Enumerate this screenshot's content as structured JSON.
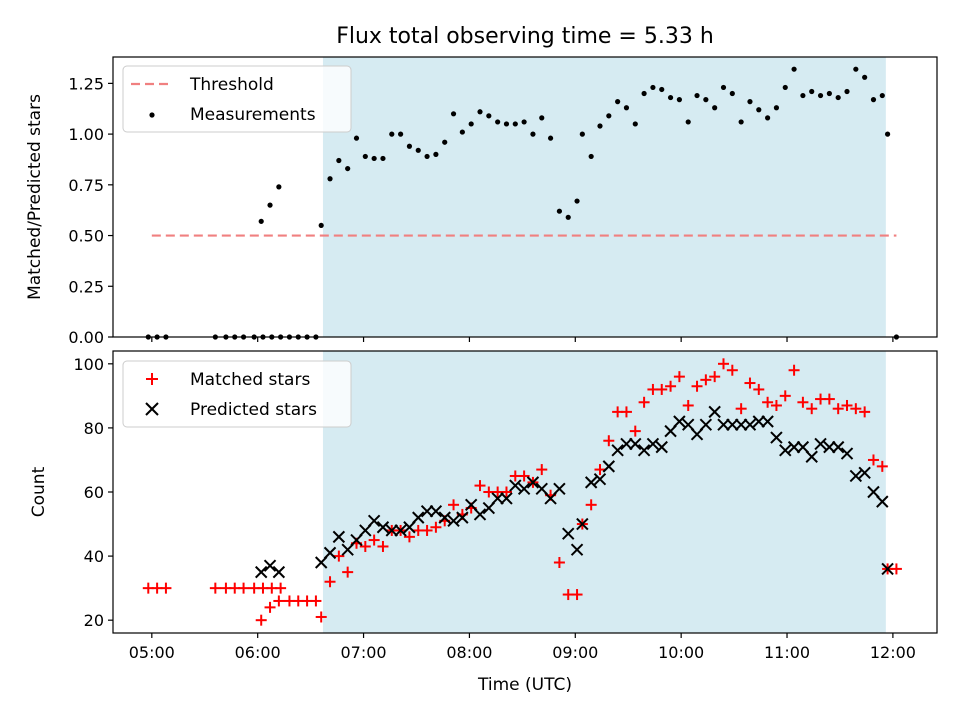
{
  "colors": {
    "threshold": "#f08080",
    "measurement": "#000000",
    "matched": "#ff0000",
    "predicted": "#000000",
    "observing_window": "#add8e6"
  },
  "chart_data": [
    {
      "type": "scatter",
      "title": "Flux total observing time = 5.33 h",
      "xlabel": "",
      "ylabel": "Matched/Predicted stars",
      "xlim": [
        "04:38",
        "12:25"
      ],
      "ylim": [
        0,
        1.38
      ],
      "x_ticks": [
        "05:00",
        "06:00",
        "07:00",
        "08:00",
        "09:00",
        "10:00",
        "11:00",
        "12:00"
      ],
      "y_ticks": [
        "0.00",
        "0.25",
        "0.50",
        "0.75",
        "1.00",
        "1.25"
      ],
      "shaded_span": {
        "from": "06:37",
        "to": "11:56"
      },
      "legend": {
        "placement": "upper left",
        "entries": [
          "Threshold",
          "Measurements"
        ]
      },
      "threshold": {
        "name": "Threshold",
        "value": 0.5,
        "from": "05:00",
        "to": "12:02"
      },
      "series": [
        {
          "name": "Measurements",
          "points": [
            [
              "04:58",
              0.0
            ],
            [
              "05:03",
              0.0
            ],
            [
              "05:08",
              0.0
            ],
            [
              "05:36",
              0.0
            ],
            [
              "05:42",
              0.0
            ],
            [
              "05:47",
              0.0
            ],
            [
              "05:52",
              0.0
            ],
            [
              "05:58",
              0.0
            ],
            [
              "06:03",
              0.0
            ],
            [
              "06:08",
              0.0
            ],
            [
              "06:13",
              0.0
            ],
            [
              "06:02",
              0.57
            ],
            [
              "06:07",
              0.65
            ],
            [
              "06:12",
              0.74
            ],
            [
              "06:18",
              0.0
            ],
            [
              "06:23",
              0.0
            ],
            [
              "06:28",
              0.0
            ],
            [
              "06:33",
              0.0
            ],
            [
              "06:36",
              0.55
            ],
            [
              "06:41",
              0.78
            ],
            [
              "06:46",
              0.87
            ],
            [
              "06:51",
              0.83
            ],
            [
              "06:56",
              0.98
            ],
            [
              "07:01",
              0.89
            ],
            [
              "07:06",
              0.88
            ],
            [
              "07:11",
              0.88
            ],
            [
              "07:16",
              1.0
            ],
            [
              "07:21",
              1.0
            ],
            [
              "07:26",
              0.94
            ],
            [
              "07:31",
              0.92
            ],
            [
              "07:36",
              0.89
            ],
            [
              "07:41",
              0.9
            ],
            [
              "07:46",
              0.96
            ],
            [
              "07:51",
              1.1
            ],
            [
              "07:56",
              1.01
            ],
            [
              "08:01",
              1.05
            ],
            [
              "08:06",
              1.11
            ],
            [
              "08:11",
              1.09
            ],
            [
              "08:16",
              1.06
            ],
            [
              "08:21",
              1.05
            ],
            [
              "08:26",
              1.05
            ],
            [
              "08:31",
              1.06
            ],
            [
              "08:36",
              1.0
            ],
            [
              "08:41",
              1.08
            ],
            [
              "08:46",
              0.98
            ],
            [
              "08:51",
              0.62
            ],
            [
              "08:56",
              0.59
            ],
            [
              "09:01",
              0.67
            ],
            [
              "09:04",
              1.0
            ],
            [
              "09:09",
              0.89
            ],
            [
              "09:14",
              1.04
            ],
            [
              "09:19",
              1.09
            ],
            [
              "09:24",
              1.16
            ],
            [
              "09:29",
              1.13
            ],
            [
              "09:34",
              1.05
            ],
            [
              "09:39",
              1.2
            ],
            [
              "09:44",
              1.23
            ],
            [
              "09:49",
              1.22
            ],
            [
              "09:54",
              1.18
            ],
            [
              "09:59",
              1.17
            ],
            [
              "10:04",
              1.06
            ],
            [
              "10:09",
              1.19
            ],
            [
              "10:14",
              1.17
            ],
            [
              "10:19",
              1.13
            ],
            [
              "10:24",
              1.23
            ],
            [
              "10:29",
              1.2
            ],
            [
              "10:34",
              1.06
            ],
            [
              "10:39",
              1.16
            ],
            [
              "10:44",
              1.12
            ],
            [
              "10:49",
              1.08
            ],
            [
              "10:54",
              1.13
            ],
            [
              "10:59",
              1.23
            ],
            [
              "11:04",
              1.32
            ],
            [
              "11:09",
              1.19
            ],
            [
              "11:14",
              1.21
            ],
            [
              "11:19",
              1.19
            ],
            [
              "11:24",
              1.2
            ],
            [
              "11:29",
              1.18
            ],
            [
              "11:34",
              1.21
            ],
            [
              "11:39",
              1.32
            ],
            [
              "11:44",
              1.28
            ],
            [
              "11:49",
              1.17
            ],
            [
              "11:54",
              1.19
            ],
            [
              "11:57",
              1.0
            ],
            [
              "12:02",
              0.0
            ]
          ]
        }
      ]
    },
    {
      "type": "scatter",
      "title": "",
      "xlabel": "Time (UTC)",
      "ylabel": "Count",
      "xlim": [
        "04:38",
        "12:25"
      ],
      "ylim": [
        16,
        104
      ],
      "x_ticks": [
        "05:00",
        "06:00",
        "07:00",
        "08:00",
        "09:00",
        "10:00",
        "11:00",
        "12:00"
      ],
      "y_ticks": [
        "20",
        "40",
        "60",
        "80",
        "100"
      ],
      "shaded_span": {
        "from": "06:37",
        "to": "11:56"
      },
      "legend": {
        "placement": "upper left",
        "entries": [
          "Matched stars",
          "Predicted stars"
        ]
      },
      "series": [
        {
          "name": "Matched stars",
          "marker": "plus",
          "points": [
            [
              "04:58",
              30
            ],
            [
              "05:03",
              30
            ],
            [
              "05:08",
              30
            ],
            [
              "05:36",
              30
            ],
            [
              "05:42",
              30
            ],
            [
              "05:47",
              30
            ],
            [
              "05:52",
              30
            ],
            [
              "05:58",
              30
            ],
            [
              "06:03",
              30
            ],
            [
              "06:08",
              30
            ],
            [
              "06:13",
              30
            ],
            [
              "06:02",
              20
            ],
            [
              "06:07",
              24
            ],
            [
              "06:12",
              26
            ],
            [
              "06:18",
              26
            ],
            [
              "06:23",
              26
            ],
            [
              "06:28",
              26
            ],
            [
              "06:33",
              26
            ],
            [
              "06:36",
              21
            ],
            [
              "06:41",
              32
            ],
            [
              "06:46",
              40
            ],
            [
              "06:51",
              35
            ],
            [
              "06:56",
              44
            ],
            [
              "07:01",
              43
            ],
            [
              "07:06",
              45
            ],
            [
              "07:11",
              43
            ],
            [
              "07:16",
              48
            ],
            [
              "07:21",
              48
            ],
            [
              "07:26",
              46
            ],
            [
              "07:31",
              48
            ],
            [
              "07:36",
              48
            ],
            [
              "07:41",
              49
            ],
            [
              "07:46",
              51
            ],
            [
              "07:51",
              56
            ],
            [
              "07:56",
              53
            ],
            [
              "08:01",
              55
            ],
            [
              "08:06",
              62
            ],
            [
              "08:11",
              60
            ],
            [
              "08:16",
              60
            ],
            [
              "08:21",
              60
            ],
            [
              "08:26",
              65
            ],
            [
              "08:31",
              65
            ],
            [
              "08:36",
              63
            ],
            [
              "08:41",
              67
            ],
            [
              "08:46",
              59
            ],
            [
              "08:51",
              38
            ],
            [
              "08:56",
              28
            ],
            [
              "09:01",
              28
            ],
            [
              "09:04",
              50
            ],
            [
              "09:09",
              56
            ],
            [
              "09:14",
              67
            ],
            [
              "09:19",
              76
            ],
            [
              "09:24",
              85
            ],
            [
              "09:29",
              85
            ],
            [
              "09:34",
              79
            ],
            [
              "09:39",
              88
            ],
            [
              "09:44",
              92
            ],
            [
              "09:49",
              92
            ],
            [
              "09:54",
              93
            ],
            [
              "09:59",
              96
            ],
            [
              "10:04",
              87
            ],
            [
              "10:09",
              93
            ],
            [
              "10:14",
              95
            ],
            [
              "10:19",
              96
            ],
            [
              "10:24",
              100
            ],
            [
              "10:29",
              98
            ],
            [
              "10:34",
              86
            ],
            [
              "10:39",
              94
            ],
            [
              "10:44",
              92
            ],
            [
              "10:49",
              88
            ],
            [
              "10:54",
              87
            ],
            [
              "10:59",
              90
            ],
            [
              "11:04",
              98
            ],
            [
              "11:09",
              88
            ],
            [
              "11:14",
              86
            ],
            [
              "11:19",
              89
            ],
            [
              "11:24",
              89
            ],
            [
              "11:29",
              86
            ],
            [
              "11:34",
              87
            ],
            [
              "11:39",
              86
            ],
            [
              "11:44",
              85
            ],
            [
              "11:49",
              70
            ],
            [
              "11:54",
              68
            ],
            [
              "11:57",
              36
            ],
            [
              "12:02",
              36
            ]
          ]
        },
        {
          "name": "Predicted stars",
          "marker": "x",
          "points": [
            [
              "06:02",
              35
            ],
            [
              "06:07",
              37
            ],
            [
              "06:12",
              35
            ],
            [
              "06:36",
              38
            ],
            [
              "06:41",
              41
            ],
            [
              "06:46",
              46
            ],
            [
              "06:51",
              42
            ],
            [
              "06:56",
              45
            ],
            [
              "07:01",
              48
            ],
            [
              "07:06",
              51
            ],
            [
              "07:11",
              49
            ],
            [
              "07:16",
              48
            ],
            [
              "07:21",
              48
            ],
            [
              "07:26",
              49
            ],
            [
              "07:31",
              52
            ],
            [
              "07:36",
              54
            ],
            [
              "07:41",
              54
            ],
            [
              "07:46",
              52
            ],
            [
              "07:51",
              51
            ],
            [
              "07:56",
              52
            ],
            [
              "08:01",
              56
            ],
            [
              "08:06",
              53
            ],
            [
              "08:11",
              55
            ],
            [
              "08:16",
              58
            ],
            [
              "08:21",
              58
            ],
            [
              "08:26",
              62
            ],
            [
              "08:31",
              61
            ],
            [
              "08:36",
              63
            ],
            [
              "08:41",
              61
            ],
            [
              "08:46",
              58
            ],
            [
              "08:51",
              61
            ],
            [
              "08:56",
              47
            ],
            [
              "09:01",
              42
            ],
            [
              "09:04",
              50
            ],
            [
              "09:09",
              63
            ],
            [
              "09:14",
              64
            ],
            [
              "09:19",
              68
            ],
            [
              "09:24",
              73
            ],
            [
              "09:29",
              75
            ],
            [
              "09:34",
              75
            ],
            [
              "09:39",
              73
            ],
            [
              "09:44",
              75
            ],
            [
              "09:49",
              74
            ],
            [
              "09:54",
              79
            ],
            [
              "09:59",
              82
            ],
            [
              "10:04",
              81
            ],
            [
              "10:09",
              78
            ],
            [
              "10:14",
              81
            ],
            [
              "10:19",
              85
            ],
            [
              "10:24",
              81
            ],
            [
              "10:29",
              81
            ],
            [
              "10:34",
              81
            ],
            [
              "10:39",
              81
            ],
            [
              "10:44",
              82
            ],
            [
              "10:49",
              82
            ],
            [
              "10:54",
              77
            ],
            [
              "10:59",
              73
            ],
            [
              "11:04",
              74
            ],
            [
              "11:09",
              74
            ],
            [
              "11:14",
              71
            ],
            [
              "11:19",
              75
            ],
            [
              "11:24",
              74
            ],
            [
              "11:29",
              74
            ],
            [
              "11:34",
              72
            ],
            [
              "11:39",
              65
            ],
            [
              "11:44",
              66
            ],
            [
              "11:49",
              60
            ],
            [
              "11:54",
              57
            ],
            [
              "11:57",
              36
            ]
          ]
        }
      ]
    }
  ]
}
